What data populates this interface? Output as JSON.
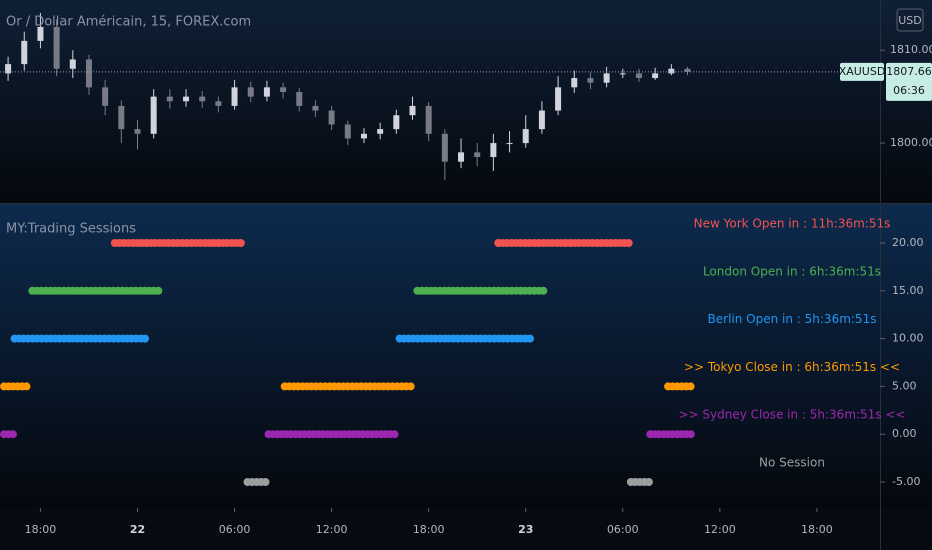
{
  "chart_data": [
    {
      "type": "candlestick",
      "title": "Or / Dollar Américain, 15, FOREX.com",
      "currency": "USD",
      "symbol": "XAUUSD",
      "last_price": 1807.66,
      "countdown": "06:36",
      "up_color": "#d1d4dc",
      "down_color": "#787b86",
      "x": [
        -2,
        -1,
        0,
        1,
        2,
        3,
        4,
        5,
        6,
        7,
        8,
        9,
        10,
        11,
        12,
        13,
        14,
        15,
        16,
        17,
        18,
        19,
        20,
        21,
        22,
        23,
        24,
        25,
        26,
        27,
        28,
        29,
        30,
        31,
        32,
        33,
        34,
        35,
        36,
        37,
        38,
        39,
        40
      ],
      "open": [
        1807.5,
        1808.5,
        1811,
        1812.5,
        1808,
        1809,
        1806,
        1804,
        1801.5,
        1801,
        1805,
        1804.5,
        1805,
        1804.5,
        1804,
        1806,
        1805,
        1806,
        1805.5,
        1804,
        1803.5,
        1802,
        1800.5,
        1801,
        1801.5,
        1803,
        1804,
        1801,
        1798,
        1799,
        1798.5,
        1800,
        1800,
        1801.5,
        1803.5,
        1806,
        1807,
        1806.5,
        1807.5,
        1807.5,
        1807,
        1807.5,
        1808
      ],
      "high": [
        1809.3,
        1812,
        1814,
        1813.3,
        1810,
        1809.5,
        1806.8,
        1804.6,
        1802.5,
        1805.8,
        1805.8,
        1805.8,
        1805.6,
        1805,
        1806.8,
        1806.6,
        1806.7,
        1806.5,
        1805.9,
        1804.6,
        1804,
        1802.4,
        1801.6,
        1802.2,
        1803.6,
        1805,
        1804.4,
        1801.5,
        1800.5,
        1800,
        1801,
        1801.3,
        1803,
        1804.5,
        1807.2,
        1807.8,
        1807.6,
        1808.2,
        1808,
        1808,
        1808.1,
        1808.5,
        1808.2
      ],
      "low": [
        1806.7,
        1807.8,
        1810.2,
        1807.2,
        1807,
        1805.2,
        1803,
        1800,
        1799.3,
        1800.5,
        1803.7,
        1803.9,
        1803.8,
        1803.3,
        1803.6,
        1804.4,
        1804.5,
        1804.8,
        1803.4,
        1802.8,
        1801.4,
        1799.8,
        1800,
        1800.4,
        1801,
        1802.5,
        1800.2,
        1796,
        1797.3,
        1797.5,
        1797,
        1799,
        1799.5,
        1801,
        1803,
        1805.4,
        1805.8,
        1806,
        1807,
        1806.6,
        1806.8,
        1807.3,
        1807.3
      ],
      "close": [
        1808.5,
        1811,
        1812.5,
        1808,
        1809,
        1806,
        1804,
        1801.5,
        1801,
        1805,
        1804.5,
        1805,
        1804.5,
        1804,
        1806,
        1805,
        1806,
        1805.5,
        1804,
        1803.5,
        1802,
        1800.5,
        1801,
        1801.5,
        1803,
        1804,
        1801,
        1798,
        1799,
        1798.5,
        1800,
        1800,
        1801.5,
        1803.5,
        1806,
        1807,
        1806.5,
        1807.5,
        1807.5,
        1807,
        1807.5,
        1808,
        1807.66
      ],
      "xlim": [
        -2.5,
        51.9
      ],
      "ylim": [
        1793.55,
        1815.4
      ],
      "yticks": [
        {
          "value": 1800,
          "label": "1800.00"
        },
        {
          "value": 1810,
          "label": "1810.00"
        }
      ]
    },
    {
      "type": "sessions",
      "title": "MY:Trading Sessions",
      "series": [
        {
          "label": "New York Open in : 11h:36m:51s",
          "color": "#f05350",
          "value": 20,
          "segments": [
            [
              4.6,
              12.6
            ],
            [
              28.3,
              36.4
            ]
          ]
        },
        {
          "label": "London Open in : 6h:36m:51s",
          "color": "#4caf50",
          "value": 15,
          "segments": [
            [
              -0.5,
              7.5
            ],
            [
              23.3,
              31.3
            ]
          ]
        },
        {
          "label": "Berlin Open in : 5h:36m:51s",
          "color": "#2196f3",
          "value": 10,
          "segments": [
            [
              -1.6,
              6.6
            ],
            [
              22.2,
              30.3
            ]
          ]
        },
        {
          "label": ">> Tokyo Close in : 6h:36m:51s <<",
          "color": "#ff9800",
          "value": 5,
          "segments": [
            [
              -2.5,
              -0.6
            ],
            [
              15.1,
              23.1
            ],
            [
              38.8,
              40.3
            ]
          ]
        },
        {
          "label": ">> Sydney Close in : 5h:36m:51s <<",
          "color": "#9c27b0",
          "value": 0,
          "segments": [
            [
              -2.5,
              -1.6
            ],
            [
              14.1,
              22.1
            ],
            [
              37.7,
              40.3
            ]
          ]
        },
        {
          "label": "No Session",
          "color": "#9e9e9e",
          "value": -5,
          "segments": [
            [
              12.8,
              14.0
            ],
            [
              36.5,
              37.7
            ]
          ]
        }
      ],
      "xlim": [
        -2.5,
        51.9
      ],
      "ylim": [
        -7.72,
        24.08
      ],
      "yticks": [
        {
          "value": 20,
          "label": "20.00"
        },
        {
          "value": 15,
          "label": "15.00"
        },
        {
          "value": 10,
          "label": "10.00"
        },
        {
          "value": 5,
          "label": "5.00"
        },
        {
          "value": 0,
          "label": "0.00"
        },
        {
          "value": -5,
          "label": "-5.00"
        }
      ],
      "xticks": [
        {
          "value": 0,
          "label": "18:00"
        },
        {
          "value": 6,
          "label": "22"
        },
        {
          "value": 12,
          "label": "06:00"
        },
        {
          "value": 18,
          "label": "12:00"
        },
        {
          "value": 24,
          "label": "18:00"
        },
        {
          "value": 30,
          "label": "23"
        },
        {
          "value": 36,
          "label": "06:00"
        },
        {
          "value": 42,
          "label": "12:00"
        },
        {
          "value": 48,
          "label": "18:00"
        }
      ]
    }
  ]
}
